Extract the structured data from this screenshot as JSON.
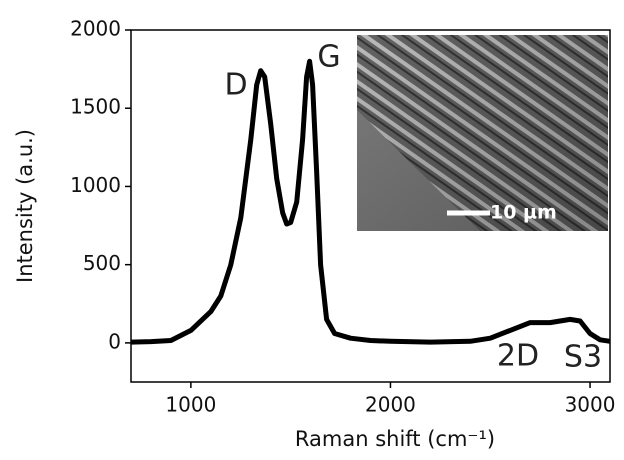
{
  "chart_data": {
    "type": "line",
    "xlabel": "Raman shift (cm⁻¹)",
    "ylabel": "Intensity (a.u.)",
    "x": [
      700,
      800,
      900,
      1000,
      1100,
      1150,
      1200,
      1250,
      1300,
      1330,
      1350,
      1370,
      1400,
      1430,
      1460,
      1480,
      1500,
      1530,
      1560,
      1580,
      1595,
      1610,
      1630,
      1650,
      1680,
      1720,
      1800,
      1900,
      2000,
      2200,
      2400,
      2500,
      2600,
      2700,
      2800,
      2900,
      2950,
      3000,
      3050,
      3100
    ],
    "series": [
      {
        "color": "#000000",
        "values": [
          5,
          8,
          15,
          80,
          200,
          300,
          500,
          800,
          1300,
          1650,
          1740,
          1700,
          1400,
          1050,
          830,
          760,
          770,
          900,
          1300,
          1700,
          1800,
          1650,
          1100,
          500,
          150,
          60,
          30,
          15,
          10,
          5,
          10,
          30,
          80,
          130,
          130,
          150,
          140,
          60,
          20,
          10
        ]
      }
    ],
    "xlim": [
      700,
      3100
    ],
    "ylim": [
      -250,
      2000
    ],
    "xticks": [
      1000,
      2000,
      3000
    ],
    "yticks": [
      0,
      500,
      1000,
      1500,
      2000
    ],
    "annotations": [
      "D",
      "G",
      "2D",
      "S3"
    ],
    "inset_scale_label": "10 µm"
  }
}
